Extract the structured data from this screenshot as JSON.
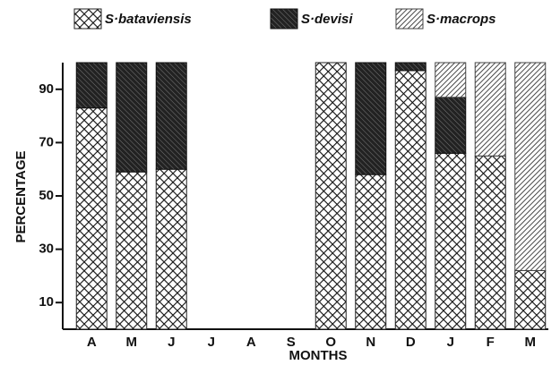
{
  "chart_data": {
    "type": "stacked-bar",
    "xlabel": "MONTHS",
    "ylabel": "PERCENTAGE",
    "categories": [
      "A",
      "M",
      "J",
      "J",
      "A",
      "S",
      "O",
      "N",
      "D",
      "J",
      "F",
      "M"
    ],
    "series": [
      {
        "name": "S·bataviensis",
        "color": "#222",
        "pattern": "crosshatch",
        "values": [
          83,
          59,
          60,
          null,
          null,
          null,
          100,
          58,
          97,
          66,
          65,
          22
        ]
      },
      {
        "name": "S·devisi",
        "color": "#111",
        "pattern": "dense",
        "values": [
          17,
          41,
          40,
          null,
          null,
          null,
          0,
          42,
          3,
          21,
          0,
          0
        ]
      },
      {
        "name": "S·macrops",
        "color": "#444",
        "pattern": "diagonal",
        "values": [
          0,
          0,
          0,
          null,
          null,
          null,
          0,
          0,
          0,
          13,
          35,
          78
        ]
      }
    ],
    "ylim": [
      0,
      100
    ],
    "yticks": [
      10,
      30,
      50,
      70,
      90
    ]
  }
}
